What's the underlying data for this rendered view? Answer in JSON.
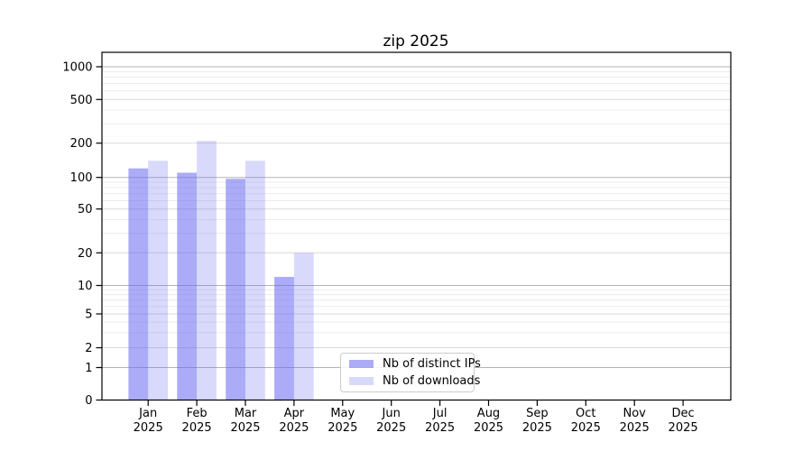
{
  "chart_data": {
    "type": "bar",
    "title": "zip 2025",
    "year": "2025",
    "categories": [
      "Jan",
      "Feb",
      "Mar",
      "Apr",
      "May",
      "Jun",
      "Jul",
      "Aug",
      "Sep",
      "Oct",
      "Nov",
      "Dec"
    ],
    "series": [
      {
        "name": "Nb of distinct IPs",
        "key": "distinct-ips",
        "color": "rgba(102,102,240,0.55)",
        "values": [
          120,
          110,
          97,
          12,
          null,
          null,
          null,
          null,
          null,
          null,
          null,
          null
        ]
      },
      {
        "name": "Nb of downloads",
        "key": "downloads",
        "color": "rgba(102,102,240,0.25)",
        "values": [
          140,
          210,
          140,
          20,
          null,
          null,
          null,
          null,
          null,
          null,
          null,
          null
        ]
      }
    ],
    "y_ticks": [
      0,
      1,
      2,
      5,
      10,
      20,
      50,
      100,
      200,
      500,
      1000
    ],
    "y_scale": "symlog",
    "ylim": [
      0,
      1300
    ],
    "grid": true,
    "legend_position": "inside lower-center-left"
  },
  "colors": {
    "background": "#ffffff",
    "axis": "#000000",
    "grid_decade": "#b3b3b3",
    "grid_labeled": "#d9d9d9",
    "grid_minor": "#ececec",
    "legend_border": "#cccccc"
  }
}
